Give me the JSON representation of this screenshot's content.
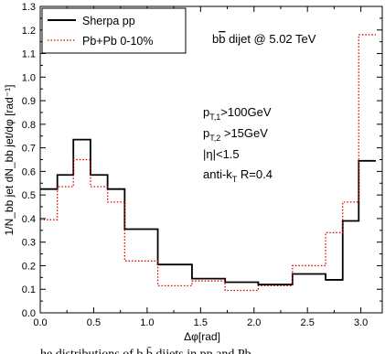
{
  "chart_data": {
    "type": "line",
    "subtype": "histogram-step",
    "title": "",
    "xlabel": "Δφ[rad]",
    "ylabel": "1/N_bb jet dN_bb jet/dφ [rad⁻¹]",
    "xlim": [
      0.0,
      3.2
    ],
    "ylim": [
      0.0,
      1.3
    ],
    "x_ticks": [
      0.0,
      0.5,
      1.0,
      1.5,
      2.0,
      2.5,
      3.0
    ],
    "x_tick_labels": [
      "0.0",
      "0.5",
      "1.0",
      "1.5",
      "2.0",
      "2.5",
      "3.0"
    ],
    "y_ticks": [
      0.0,
      0.1,
      0.2,
      0.3,
      0.4,
      0.5,
      0.6,
      0.7,
      0.8,
      0.9,
      1.0,
      1.1,
      1.2,
      1.3
    ],
    "y_tick_labels": [
      "0.0",
      "0.1",
      "0.2",
      "0.3",
      "0.4",
      "0.5",
      "0.6",
      "0.7",
      "0.8",
      "0.9",
      "1.0",
      "1.1",
      "1.2",
      "1.3"
    ],
    "bin_edges": [
      0.0,
      0.16,
      0.31,
      0.47,
      0.63,
      0.79,
      1.1,
      1.42,
      1.73,
      2.04,
      2.36,
      2.67,
      2.83,
      2.98,
      3.14
    ],
    "series": [
      {
        "name": "Sherpa pp",
        "color": "#000000",
        "line_style": "solid",
        "values": [
          0.525,
          0.585,
          0.735,
          0.585,
          0.525,
          0.355,
          0.205,
          0.145,
          0.13,
          0.12,
          0.165,
          0.14,
          0.39,
          0.645
        ]
      },
      {
        "name": "Pb+Pb 0-10%",
        "color": "#dd0000",
        "line_style": "dotted",
        "values": [
          0.395,
          0.535,
          0.65,
          0.535,
          0.47,
          0.22,
          0.115,
          0.135,
          0.095,
          0.115,
          0.2,
          0.34,
          0.47,
          1.18
        ]
      }
    ],
    "legend_position": "top-left",
    "annotations": [
      {
        "id": "process",
        "parts": [
          "b",
          "b",
          " dijet @ 5.02 TeV"
        ]
      },
      {
        "id": "pt1",
        "parts": [
          "p",
          "T,1",
          ">100GeV"
        ]
      },
      {
        "id": "pt2",
        "parts": [
          "p",
          "T,2",
          " >15GeV"
        ]
      },
      {
        "id": "eta",
        "parts": [
          "|η|<1.5"
        ]
      },
      {
        "id": "algo",
        "parts": [
          "anti-k",
          "T",
          " R=0.4"
        ]
      }
    ],
    "grid": false
  },
  "caption_partial": "he distributions of b b̄ dijets in pp and Pb"
}
